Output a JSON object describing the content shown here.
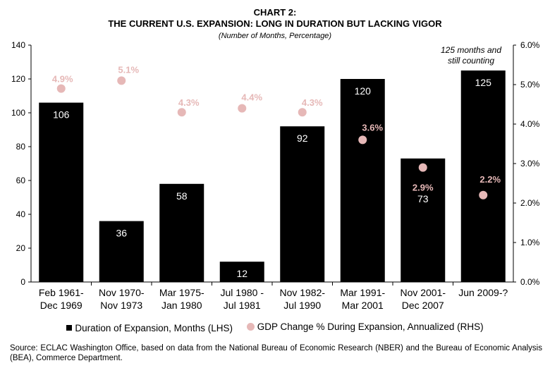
{
  "header": {
    "title_line1": "CHART 2:",
    "title_line2": "THE CURRENT U.S. EXPANSION:  LONG IN DURATION BUT LACKING VIGOR",
    "subtitle": "(Number of Months,  Percentage)"
  },
  "annotation": {
    "line1": "125 months and",
    "line2": "still counting"
  },
  "legend": {
    "bars": "Duration of Expansion, Months (LHS)",
    "dots": "GDP Change % During Expansion, Annualized (RHS)"
  },
  "source": "Source: ECLAC Washington Office, based on data from the National Bureau of Economic Research (NBER) and the Bureau of Economic Analysis (BEA), Commerce Department.",
  "colors": {
    "bar": "#000000",
    "dot": "#e6b8b7",
    "bar_label": "#ffffff",
    "axis": "#000000"
  },
  "chart_data": {
    "type": "bar",
    "categories": [
      [
        "Feb 1961-",
        "Dec 1969"
      ],
      [
        "Nov 1970-",
        "Nov 1973"
      ],
      [
        "Mar 1975-",
        "Jan 1980"
      ],
      [
        "Jul 1980  -",
        "Jul 1981"
      ],
      [
        "Nov 1982-",
        "Jul 1990"
      ],
      [
        "Mar 1991-",
        "Mar 2001"
      ],
      [
        "Nov 2001-",
        "Dec 2007"
      ],
      [
        "Jun 2009-?"
      ]
    ],
    "series": [
      {
        "name": "Duration of Expansion, Months (LHS)",
        "axis": "left",
        "values": [
          106,
          36,
          58,
          12,
          92,
          120,
          73,
          125
        ],
        "labels": [
          "106",
          "36",
          "58",
          "12",
          "92",
          "120",
          "73",
          "125"
        ]
      },
      {
        "name": "GDP Change % During Expansion, Annualized (RHS)",
        "axis": "right",
        "values": [
          4.9,
          5.1,
          4.3,
          4.4,
          4.3,
          3.6,
          2.9,
          2.2
        ],
        "labels": [
          "4.9%",
          "5.1%",
          "4.3%",
          "4.4%",
          "4.3%",
          "3.6%",
          "2.9%",
          "2.2%"
        ]
      }
    ],
    "ylim_left": [
      0,
      140
    ],
    "yticks_left": [
      "0",
      "20",
      "40",
      "60",
      "80",
      "100",
      "120",
      "140"
    ],
    "ylim_right": [
      0,
      6
    ],
    "yticks_right": [
      "0.0%",
      "1.0%",
      "2.0%",
      "3.0%",
      "4.0%",
      "5.0%",
      "6.0%"
    ]
  }
}
